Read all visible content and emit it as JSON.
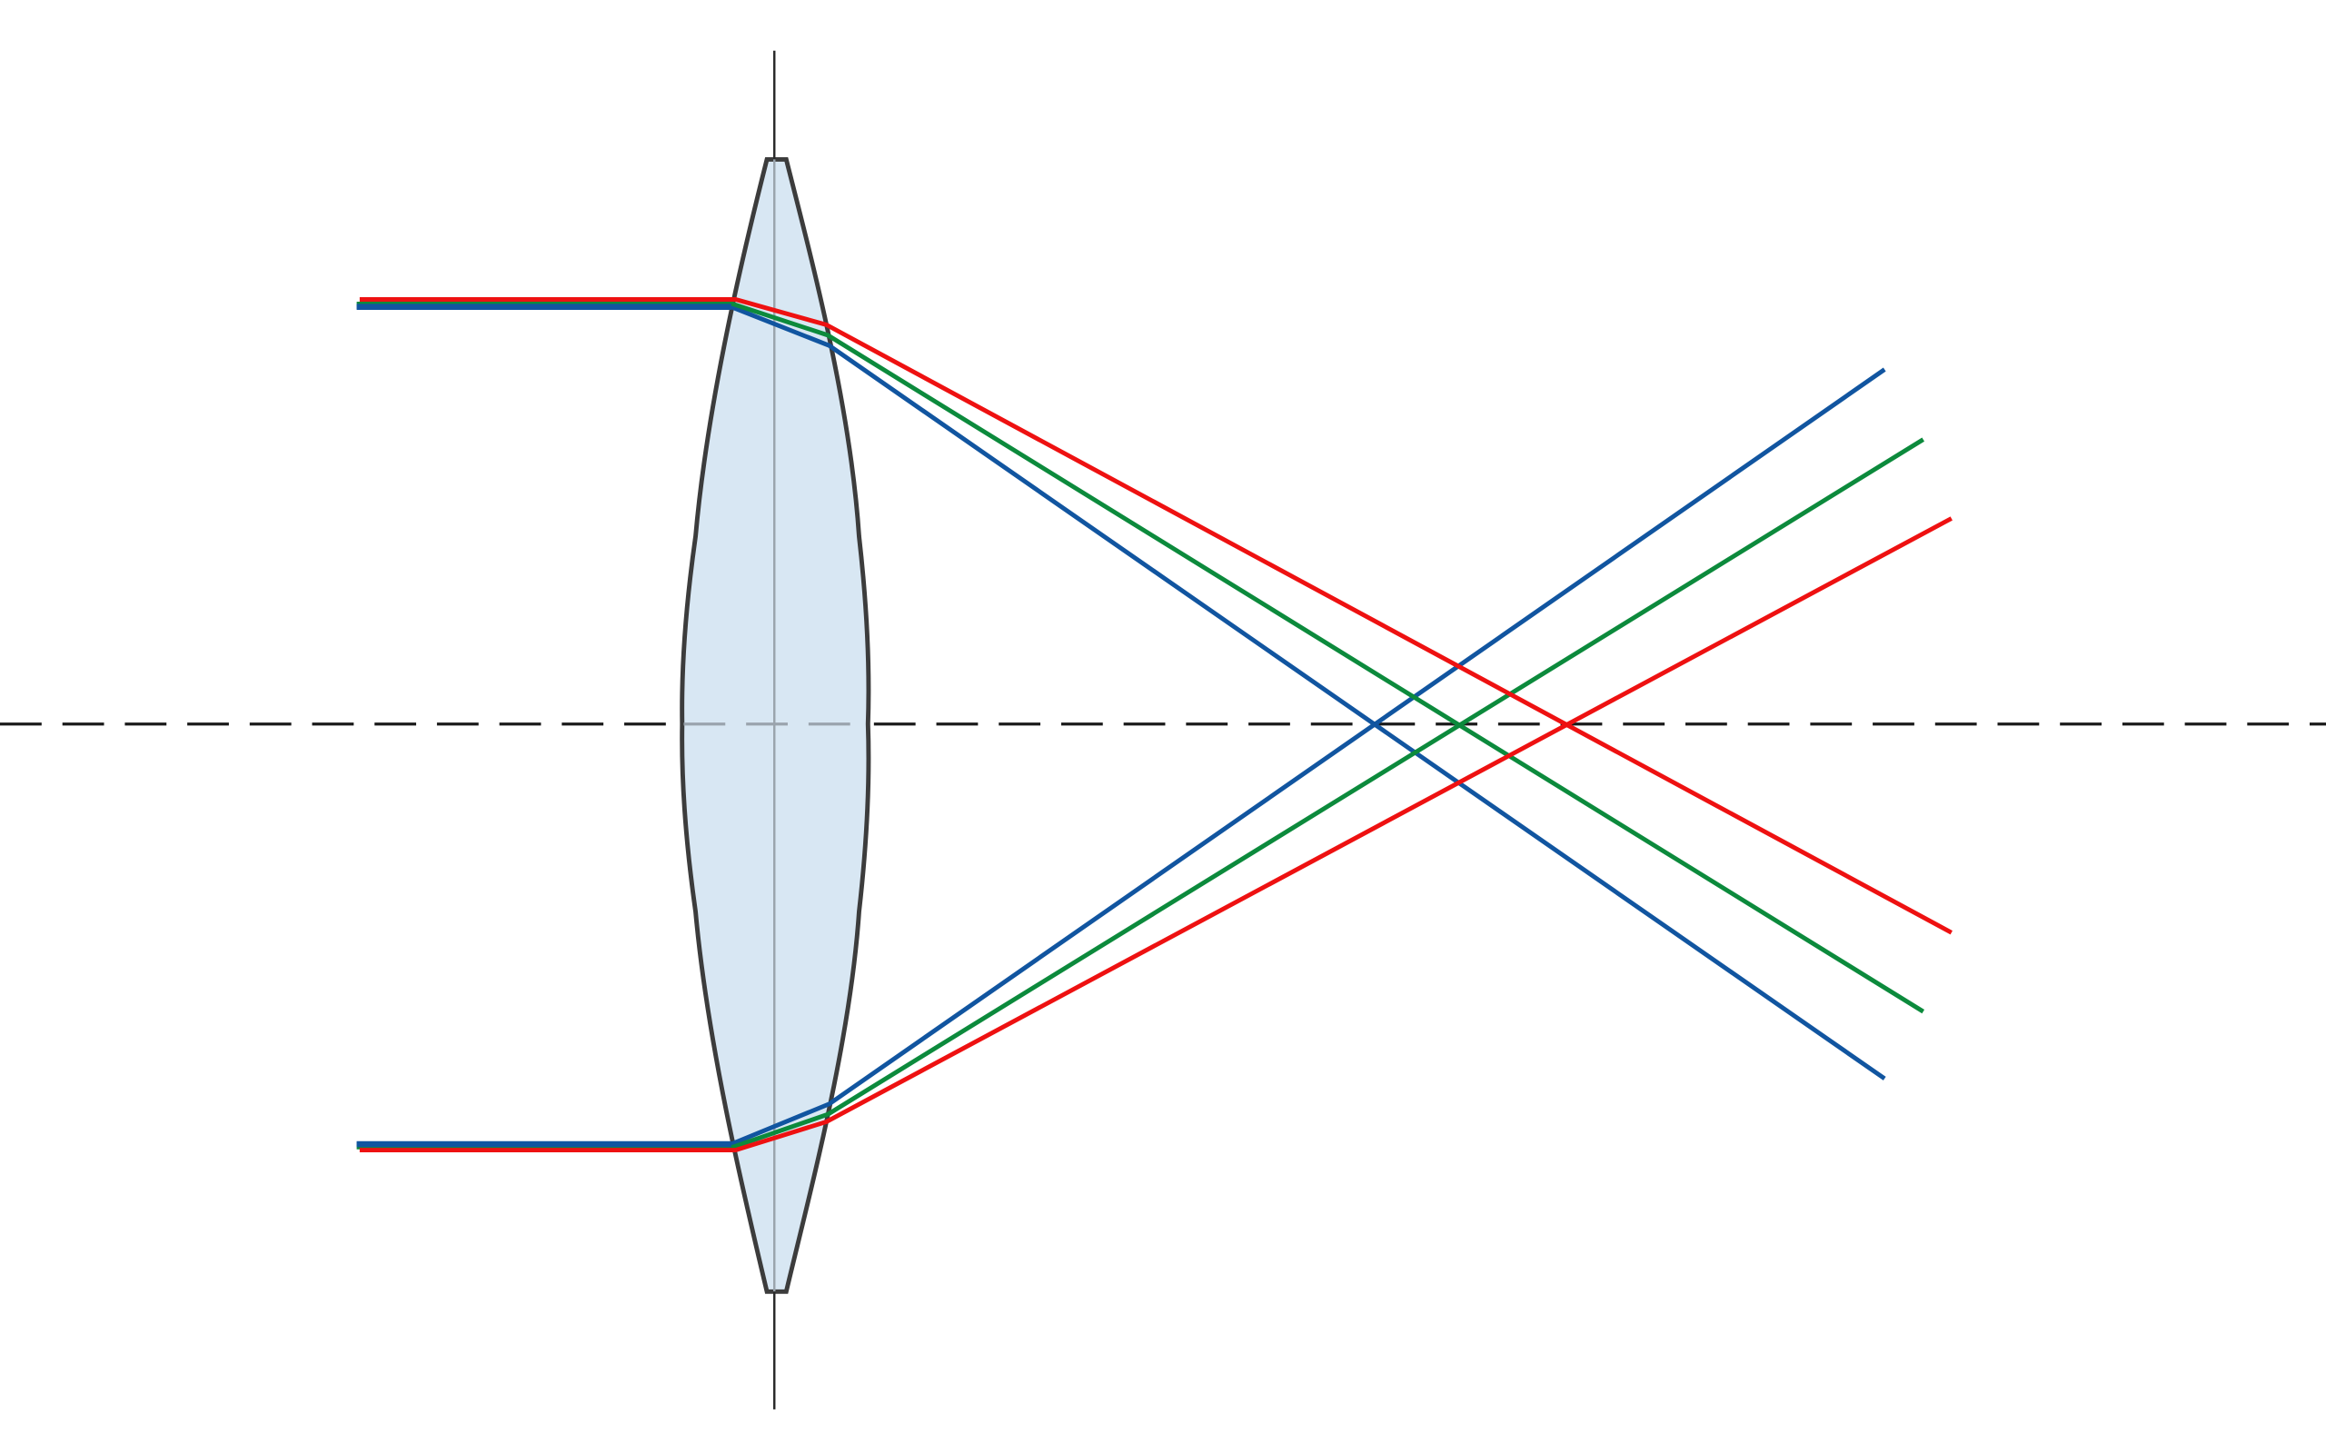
{
  "diagram": {
    "type": "chromatic-aberration-ray-diagram",
    "colors": {
      "background": "#ffffff",
      "lens_fill": "#d8e7f3",
      "lens_outline": "#3c3c3c",
      "optical_axis": "#1a1a1a",
      "lens_plane": "#2a2a2a",
      "lens_plane_inside": "#9aa4ad"
    },
    "elements": {
      "optical_axis": {
        "style": "dashed"
      },
      "lens": {
        "kind": "biconvex"
      },
      "lens_plane": {
        "style": "solid"
      }
    },
    "rays": [
      {
        "name": "red",
        "color": "#ee1111",
        "focal_order": 3
      },
      {
        "name": "green",
        "color": "#0c8a3c",
        "focal_order": 2
      },
      {
        "name": "blue",
        "color": "#1155a0",
        "focal_order": 1
      }
    ]
  }
}
